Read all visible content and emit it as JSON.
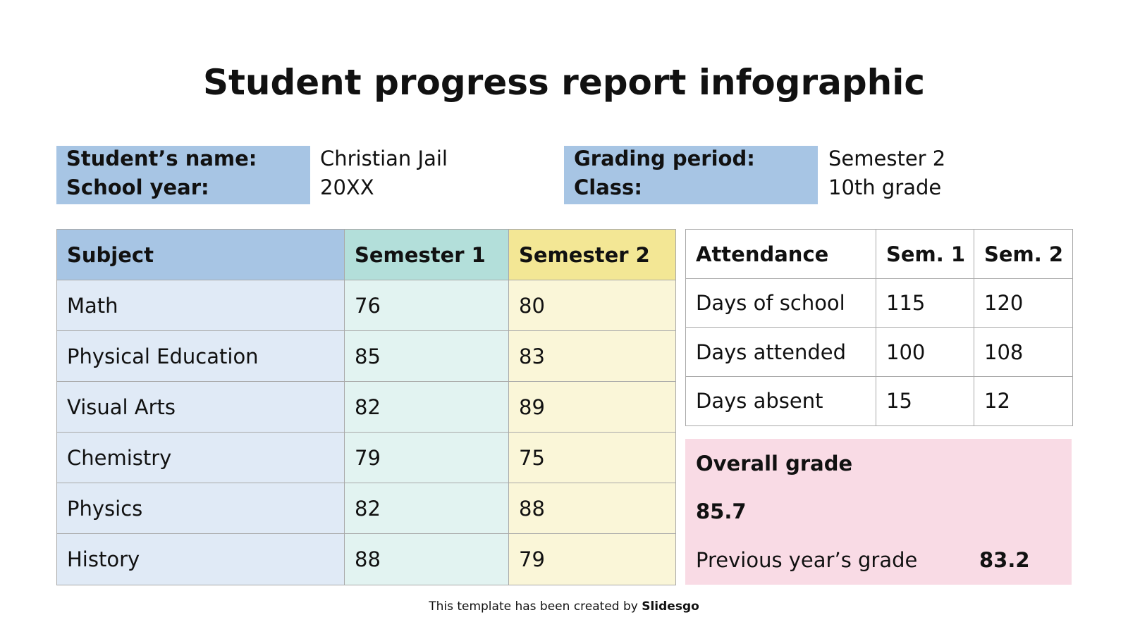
{
  "title": "Student progress report infographic",
  "info": {
    "left": {
      "labels": [
        "Student’s name:",
        "School year:"
      ],
      "values": [
        "Christian Jail",
        "20XX"
      ]
    },
    "right": {
      "labels": [
        "Grading period:",
        "Class:"
      ],
      "values": [
        "Semester 2",
        "10th grade"
      ]
    }
  },
  "grades_table": {
    "header": [
      "Subject",
      "Semester 1",
      "Semester 2"
    ],
    "rows": [
      [
        "Math",
        76,
        80
      ],
      [
        "Physical Education",
        85,
        83
      ],
      [
        "Visual Arts",
        82,
        89
      ],
      [
        "Chemistry",
        79,
        75
      ],
      [
        "Physics",
        82,
        88
      ],
      [
        "History",
        88,
        79
      ]
    ]
  },
  "attendance_table": {
    "header": [
      "Attendance",
      "Sem. 1",
      "Sem. 2"
    ],
    "rows": [
      [
        "Days of school",
        115,
        120
      ],
      [
        "Days attended",
        100,
        108
      ],
      [
        "Days absent",
        15,
        12
      ]
    ]
  },
  "overall": {
    "label": "Overall grade",
    "value": 85.7,
    "previous_label": "Previous year’s grade",
    "previous_value": 83.2
  },
  "footer": {
    "text": "This template has been created by",
    "brand": "Slidesgo"
  }
}
